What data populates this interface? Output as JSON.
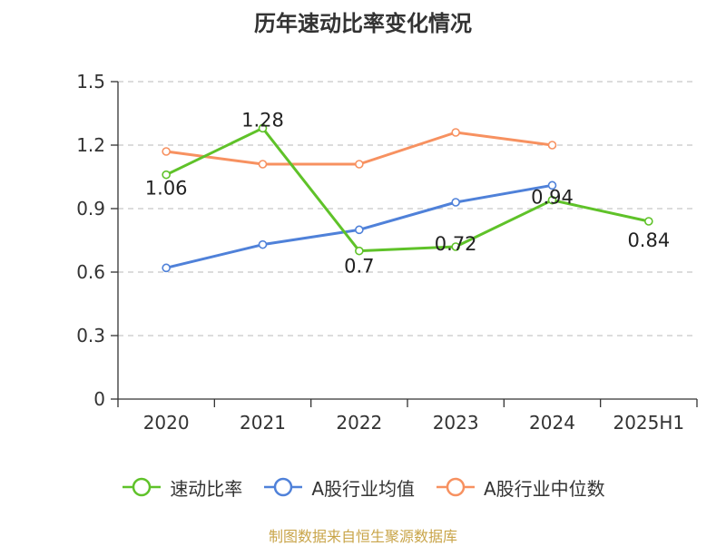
{
  "chart_data": {
    "type": "line",
    "title": "历年速动比率变化情况",
    "categories": [
      "2020",
      "2021",
      "2022",
      "2023",
      "2024",
      "2025H1"
    ],
    "ylim": [
      0,
      1.5
    ],
    "yticks": [
      "0",
      "0.3",
      "0.6",
      "0.9",
      "1.2",
      "1.5"
    ],
    "grid": true,
    "legend_position": "bottom",
    "series": [
      {
        "name": "速动比率",
        "color": "#5fc229",
        "values": [
          1.06,
          1.28,
          0.7,
          0.72,
          0.94,
          0.84
        ],
        "labels": [
          "1.06",
          "1.28",
          "0.7",
          "0.72",
          "0.94",
          "0.84"
        ]
      },
      {
        "name": "A股行业均值",
        "color": "#4f81d9",
        "values": [
          0.62,
          0.73,
          0.8,
          0.93,
          1.01,
          null
        ],
        "labels": []
      },
      {
        "name": "A股行业中位数",
        "color": "#f79160",
        "values": [
          1.17,
          1.11,
          1.11,
          1.26,
          1.2,
          null
        ],
        "labels": []
      }
    ]
  },
  "source": "制图数据来自恒生聚源数据库"
}
